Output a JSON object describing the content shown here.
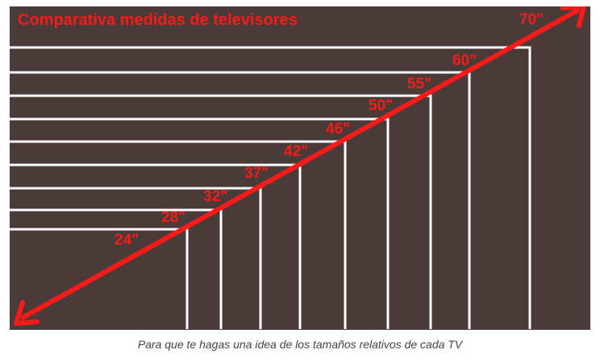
{
  "title": "Comparativa medidas de televisores",
  "caption": "Para que te hagas una idea de los tamaños relativos de cada TV",
  "colors": {
    "background": "#4a3a38",
    "outline": "#ffffff",
    "accent": "#ff1a1a"
  },
  "sizes": [
    {
      "label": "24\""
    },
    {
      "label": "28\""
    },
    {
      "label": "32\""
    },
    {
      "label": "37\""
    },
    {
      "label": "42\""
    },
    {
      "label": "46\""
    },
    {
      "label": "50\""
    },
    {
      "label": "55\""
    },
    {
      "label": "60\""
    },
    {
      "label": "70\""
    }
  ]
}
